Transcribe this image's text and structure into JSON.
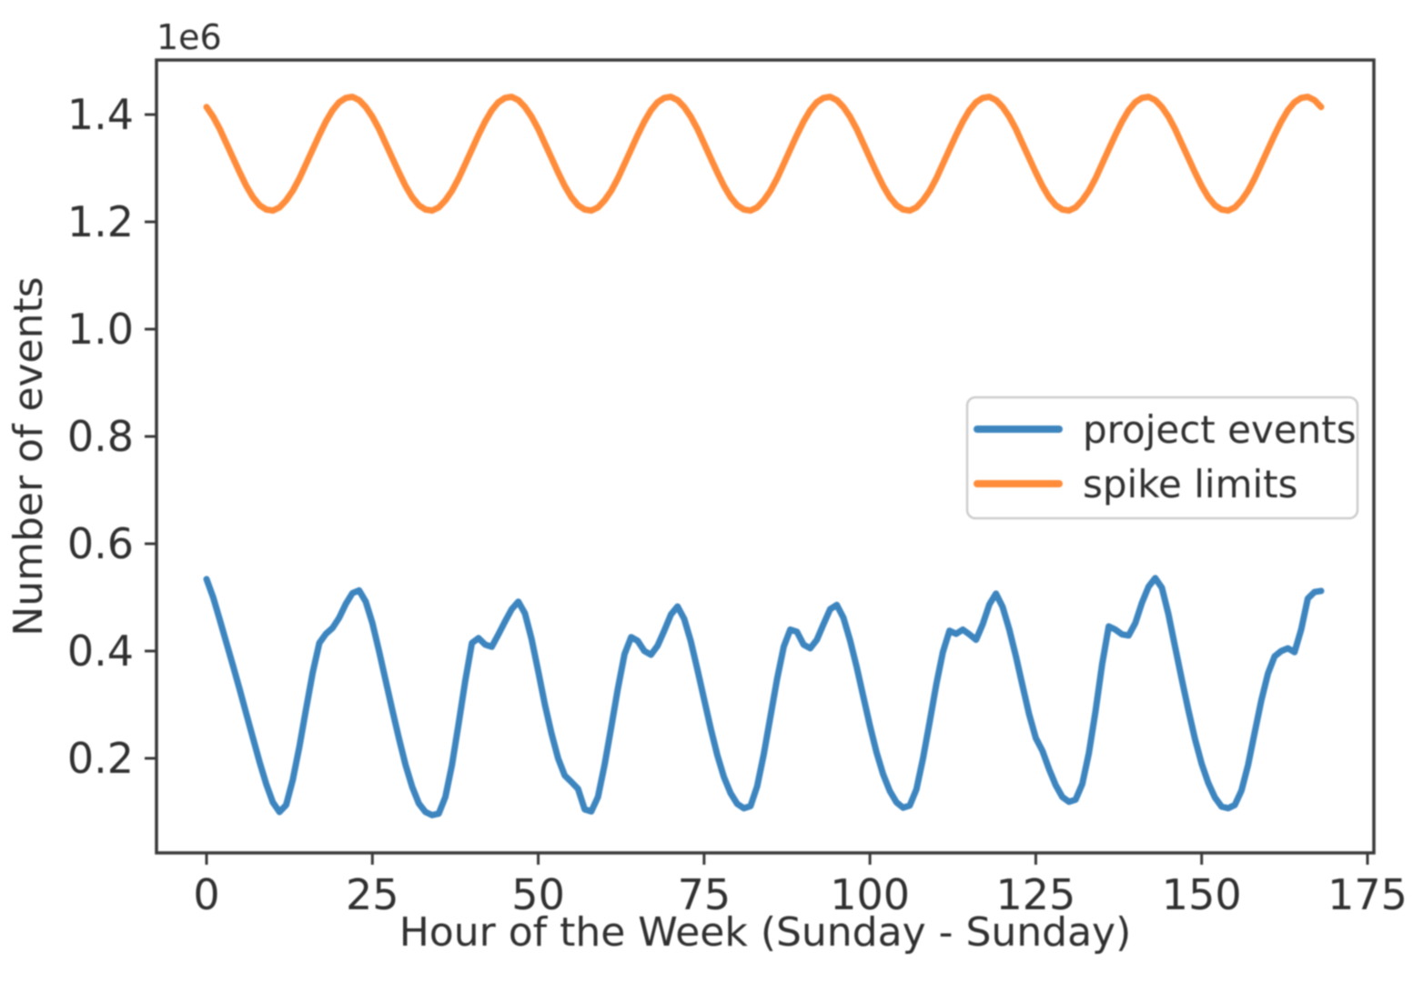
{
  "figure": {
    "background": "#ffffff",
    "spine_color": "#3a3a3a",
    "text_color": "#303030"
  },
  "chart_data": {
    "type": "line",
    "title": "",
    "xlabel": "Hour of the Week (Sunday - Sunday)",
    "ylabel": "Number of events",
    "y_offset_label": "1e6",
    "grid": false,
    "xlim": [
      -7.5,
      176
    ],
    "ylim": [
      24000,
      1502000
    ],
    "x_ticks": [
      0,
      25,
      50,
      75,
      100,
      125,
      150,
      175
    ],
    "y_ticks": [
      200000,
      400000,
      600000,
      800000,
      1000000,
      1200000,
      1400000
    ],
    "y_tick_labels": [
      "0.2",
      "0.4",
      "0.6",
      "0.8",
      "1.0",
      "1.2",
      "1.4"
    ],
    "legend": {
      "position": "center-right",
      "border_color": "#cccccc",
      "background": "#ffffff"
    },
    "x": [
      0,
      1,
      2,
      3,
      4,
      5,
      6,
      7,
      8,
      9,
      10,
      11,
      12,
      13,
      14,
      15,
      16,
      17,
      18,
      19,
      20,
      21,
      22,
      23,
      24,
      25,
      26,
      27,
      28,
      29,
      30,
      31,
      32,
      33,
      34,
      35,
      36,
      37,
      38,
      39,
      40,
      41,
      42,
      43,
      44,
      45,
      46,
      47,
      48,
      49,
      50,
      51,
      52,
      53,
      54,
      55,
      56,
      57,
      58,
      59,
      60,
      61,
      62,
      63,
      64,
      65,
      66,
      67,
      68,
      69,
      70,
      71,
      72,
      73,
      74,
      75,
      76,
      77,
      78,
      79,
      80,
      81,
      82,
      83,
      84,
      85,
      86,
      87,
      88,
      89,
      90,
      91,
      92,
      93,
      94,
      95,
      96,
      97,
      98,
      99,
      100,
      101,
      102,
      103,
      104,
      105,
      106,
      107,
      108,
      109,
      110,
      111,
      112,
      113,
      114,
      115,
      116,
      117,
      118,
      119,
      120,
      121,
      122,
      123,
      124,
      125,
      126,
      127,
      128,
      129,
      130,
      131,
      132,
      133,
      134,
      135,
      136,
      137,
      138,
      139,
      140,
      141,
      142,
      143,
      144,
      145,
      146,
      147,
      148,
      149,
      150,
      151,
      152,
      153,
      154,
      155,
      156,
      157,
      158,
      159,
      160,
      161,
      162,
      163,
      164,
      165,
      166,
      167,
      168
    ],
    "series": [
      {
        "name": "project events",
        "color": "#3d85bf",
        "values": [
          534000,
          500000,
          458000,
          415000,
          372000,
          328000,
          283000,
          238000,
          193000,
          152000,
          118000,
          100000,
          113000,
          160000,
          222000,
          292000,
          360000,
          415000,
          432000,
          443000,
          462000,
          488000,
          508000,
          513000,
          492000,
          452000,
          400000,
          345000,
          290000,
          237000,
          188000,
          147000,
          116000,
          100000,
          94000,
          97000,
          128000,
          188000,
          265000,
          345000,
          415000,
          424000,
          412000,
          408000,
          431000,
          455000,
          478000,
          492000,
          470000,
          422000,
          362000,
          300000,
          246000,
          200000,
          168000,
          156000,
          143000,
          105000,
          101000,
          128000,
          188000,
          258000,
          330000,
          394000,
          426000,
          419000,
          400000,
          393000,
          410000,
          438000,
          468000,
          483000,
          460000,
          418000,
          365000,
          310000,
          256000,
          206000,
          165000,
          135000,
          115000,
          107000,
          111000,
          148000,
          208000,
          278000,
          348000,
          408000,
          440000,
          436000,
          412000,
          405000,
          421000,
          450000,
          478000,
          486000,
          462000,
          420000,
          370000,
          315000,
          261000,
          211000,
          170000,
          139000,
          118000,
          108000,
          112000,
          142000,
          200000,
          268000,
          338000,
          398000,
          438000,
          432000,
          440000,
          431000,
          421000,
          450000,
          487000,
          507000,
          482000,
          440000,
          390000,
          336000,
          282000,
          238000,
          214000,
          180000,
          150000,
          128000,
          119000,
          123000,
          152000,
          210000,
          288000,
          375000,
          446000,
          440000,
          431000,
          429000,
          452000,
          490000,
          520000,
          536000,
          518000,
          468000,
          408000,
          348000,
          290000,
          236000,
          190000,
          154000,
          127000,
          110000,
          107000,
          113000,
          140000,
          188000,
          248000,
          308000,
          358000,
          390000,
          400000,
          405000,
          398000,
          440000,
          498000,
          510000,
          512000
        ]
      },
      {
        "name": "spike limits",
        "color": "#ff8c3a",
        "values": [
          1414000,
          1396000,
          1373000,
          1346000,
          1319000,
          1292000,
          1267000,
          1246000,
          1231000,
          1223000,
          1221000,
          1227000,
          1240000,
          1258000,
          1281000,
          1308000,
          1335000,
          1362000,
          1387000,
          1408000,
          1423000,
          1431000,
          1433000,
          1427000,
          1414000,
          1396000,
          1373000,
          1346000,
          1319000,
          1292000,
          1267000,
          1246000,
          1231000,
          1223000,
          1221000,
          1227000,
          1240000,
          1258000,
          1281000,
          1308000,
          1335000,
          1362000,
          1387000,
          1408000,
          1423000,
          1431000,
          1433000,
          1427000,
          1414000,
          1396000,
          1373000,
          1346000,
          1319000,
          1292000,
          1267000,
          1246000,
          1231000,
          1223000,
          1221000,
          1227000,
          1240000,
          1258000,
          1281000,
          1308000,
          1335000,
          1362000,
          1387000,
          1408000,
          1423000,
          1431000,
          1433000,
          1427000,
          1414000,
          1396000,
          1373000,
          1346000,
          1319000,
          1292000,
          1267000,
          1246000,
          1231000,
          1223000,
          1221000,
          1227000,
          1240000,
          1258000,
          1281000,
          1308000,
          1335000,
          1362000,
          1387000,
          1408000,
          1423000,
          1431000,
          1433000,
          1427000,
          1414000,
          1396000,
          1373000,
          1346000,
          1319000,
          1292000,
          1267000,
          1246000,
          1231000,
          1223000,
          1221000,
          1227000,
          1240000,
          1258000,
          1281000,
          1308000,
          1335000,
          1362000,
          1387000,
          1408000,
          1423000,
          1431000,
          1433000,
          1427000,
          1414000,
          1396000,
          1373000,
          1346000,
          1319000,
          1292000,
          1267000,
          1246000,
          1231000,
          1223000,
          1221000,
          1227000,
          1240000,
          1258000,
          1281000,
          1308000,
          1335000,
          1362000,
          1387000,
          1408000,
          1423000,
          1431000,
          1433000,
          1427000,
          1414000,
          1396000,
          1373000,
          1346000,
          1319000,
          1292000,
          1267000,
          1246000,
          1231000,
          1223000,
          1221000,
          1227000,
          1240000,
          1258000,
          1281000,
          1308000,
          1335000,
          1362000,
          1387000,
          1408000,
          1423000,
          1431000,
          1433000,
          1427000,
          1414000
        ]
      }
    ]
  }
}
